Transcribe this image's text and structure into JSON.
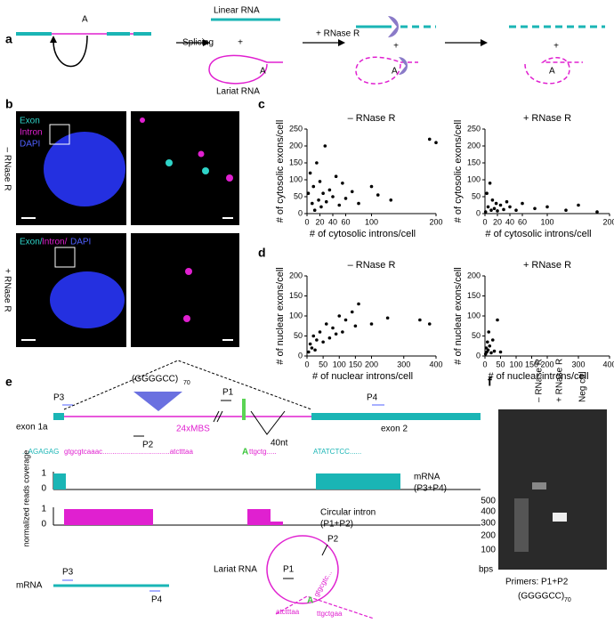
{
  "panel_a": {
    "label": "a",
    "splicing": "Splicing",
    "rnase": "+ RNase R",
    "linear": "Linear RNA",
    "lariat": "Lariat RNA",
    "branch": "A",
    "plus": "+"
  },
  "panel_b": {
    "label": "b",
    "legend_top": [
      "Exon",
      "Intron",
      "DAPI"
    ],
    "legend_bottom": [
      "Exon/",
      "Intron/",
      "DAPI"
    ],
    "minus": "– RNase R",
    "plus": "+ RNase R"
  },
  "panel_c": {
    "label": "c"
  },
  "panel_d": {
    "label": "d"
  },
  "chart_data": [
    {
      "type": "scatter",
      "title": "– RNase R",
      "xlabel": "# of cytosolic introns/cell",
      "ylabel": "# of cytosolic exons/cell",
      "color": "#000000",
      "xlim": [
        0,
        200
      ],
      "ylim": [
        0,
        250
      ],
      "xticks": [
        0,
        20,
        40,
        60,
        100,
        200
      ],
      "yticks": [
        0,
        50,
        100,
        150,
        200,
        250
      ],
      "x": [
        2,
        5,
        8,
        10,
        12,
        15,
        18,
        20,
        22,
        25,
        28,
        30,
        35,
        40,
        45,
        50,
        55,
        60,
        70,
        80,
        100,
        110,
        130,
        190,
        200
      ],
      "y": [
        60,
        120,
        30,
        80,
        10,
        150,
        40,
        95,
        20,
        60,
        200,
        35,
        70,
        50,
        110,
        25,
        90,
        45,
        65,
        30,
        80,
        55,
        40,
        220,
        210
      ]
    },
    {
      "type": "scatter",
      "title": "+ RNase R",
      "xlabel": "# of cytosolic introns/cell",
      "ylabel": "# of cytosolic exons/cell",
      "color": "#000000",
      "xlim": [
        0,
        200
      ],
      "ylim": [
        0,
        250
      ],
      "xticks": [
        0,
        20,
        40,
        60,
        100,
        200
      ],
      "yticks": [
        0,
        50,
        100,
        150,
        200,
        250
      ],
      "x": [
        1,
        3,
        5,
        8,
        10,
        12,
        15,
        18,
        20,
        25,
        30,
        35,
        40,
        50,
        60,
        80,
        100,
        130,
        150,
        180
      ],
      "y": [
        5,
        60,
        20,
        90,
        10,
        40,
        15,
        30,
        8,
        25,
        12,
        35,
        20,
        10,
        30,
        15,
        20,
        10,
        25,
        5
      ]
    },
    {
      "type": "scatter",
      "title": "– RNase R",
      "xlabel": "# of nuclear introns/cell",
      "ylabel": "# of nuclear exons/cell",
      "color": "#000000",
      "xlim": [
        0,
        400
      ],
      "ylim": [
        0,
        200
      ],
      "xticks": [
        0,
        50,
        100,
        150,
        200,
        300,
        400
      ],
      "yticks": [
        0,
        50,
        100,
        150,
        200
      ],
      "x": [
        5,
        10,
        15,
        20,
        25,
        30,
        40,
        50,
        60,
        70,
        80,
        90,
        100,
        110,
        120,
        140,
        150,
        160,
        200,
        250,
        350,
        380
      ],
      "y": [
        10,
        30,
        20,
        50,
        15,
        40,
        60,
        35,
        80,
        45,
        70,
        55,
        100,
        60,
        90,
        110,
        75,
        130,
        80,
        95,
        90,
        80
      ]
    },
    {
      "type": "scatter",
      "title": "+ RNase R",
      "xlabel": "# of nuclear introns/cell",
      "ylabel": "# of nuclear exons/cell",
      "color": "#000000",
      "xlim": [
        0,
        400
      ],
      "ylim": [
        0,
        200
      ],
      "xticks": [
        0,
        50,
        100,
        150,
        200,
        300,
        400
      ],
      "yticks": [
        0,
        50,
        100,
        150,
        200
      ],
      "x": [
        2,
        4,
        6,
        8,
        10,
        12,
        15,
        20,
        25,
        30,
        40,
        50
      ],
      "y": [
        5,
        20,
        10,
        35,
        15,
        60,
        25,
        8,
        40,
        12,
        90,
        10
      ]
    }
  ],
  "panel_e": {
    "label": "e",
    "p3": "P3",
    "exon1a": "exon 1a",
    "repeat": "(GGGGCC)",
    "repeat_n": "70",
    "p2": "P2",
    "mbs": "24xMBS",
    "p1": "P1",
    "nt": "40nt",
    "p4": "P4",
    "exon2": "exon 2",
    "seq": [
      "...AGAGAG",
      "gtgcgtcaaac..................................atctttaa",
      "A",
      "ttgctg.....",
      "ATATCTCC......"
    ],
    "track1": [
      "mRNA",
      "(P3+P4)"
    ],
    "track2": [
      "Circular intron",
      "(P1+P2)"
    ],
    "ylabel": "normalized reads coverage",
    "ticks": [
      "1",
      "0"
    ],
    "mrna": "mRNA",
    "lariat": "Lariat RNA",
    "lariat_seq": [
      "atctttaa",
      "A",
      "ttgctgaa",
      "gtgcgtc..."
    ]
  },
  "panel_f": {
    "label": "f",
    "lanes": [
      "– RNase R",
      "+ RNase R",
      "Neg ctrl"
    ],
    "ladder": [
      "500",
      "400",
      "300",
      "200",
      "100"
    ],
    "unit": "bps",
    "primers": "Primers: P1+P2",
    "repeat": "(GGGGCC)",
    "repeat_n": "70"
  }
}
